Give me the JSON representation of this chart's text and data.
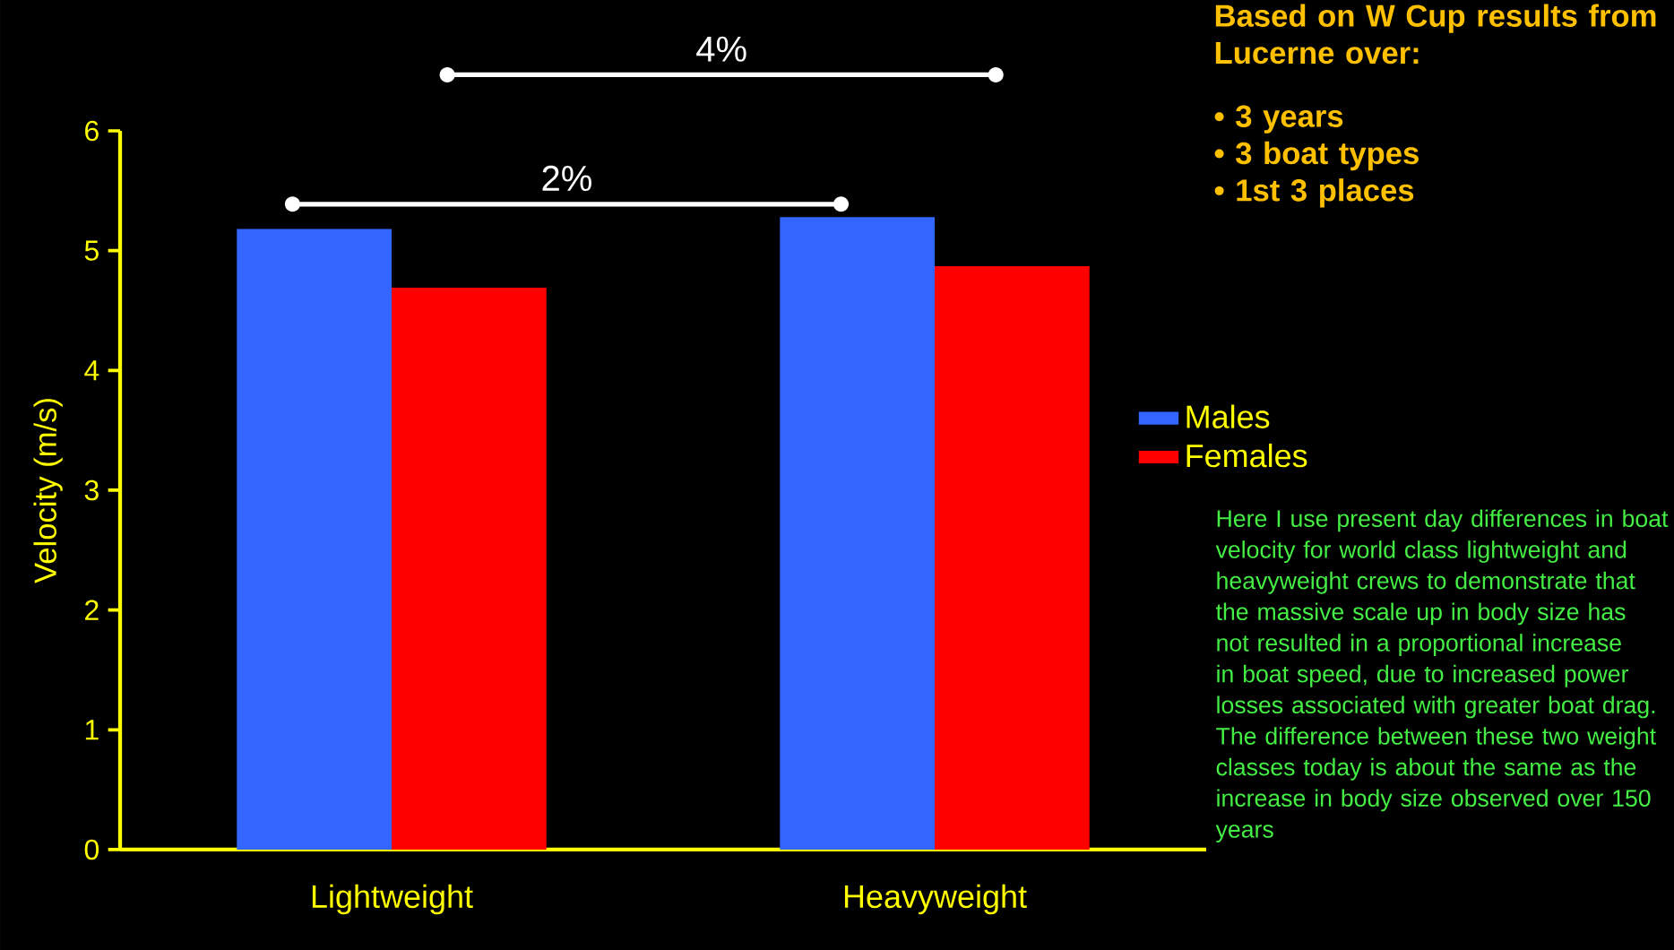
{
  "chart_data": {
    "type": "bar",
    "title": "Based on W Cup results from Lucerne over:",
    "ylabel": "Velocity (m/s)",
    "categories": [
      "Lightweight",
      "Heavyweight"
    ],
    "series": [
      {
        "name": "Males",
        "color": "#3366ff",
        "values": [
          5.18,
          5.28
        ]
      },
      {
        "name": "Females",
        "color": "#ff0000",
        "values": [
          4.69,
          4.87
        ]
      }
    ],
    "ylim": [
      0,
      6
    ],
    "yticks": [
      0,
      1,
      2,
      3,
      4,
      5,
      6
    ],
    "legend": "right",
    "annotations": [
      "2%",
      "4%",
      "• 3 years",
      "• 3 boat types",
      "• 1st 3 places",
      "Here I use present day differences in boat velocity for world class lightweight and heavyweight crews to demonstrate that the massive scale up in body size has not resulted in a proportional increase in boat speed, due to increased power losses associated with greater boat drag.  The difference between these two weight classes today is about the same as the increase in body size observed over 150 years"
    ]
  }
}
